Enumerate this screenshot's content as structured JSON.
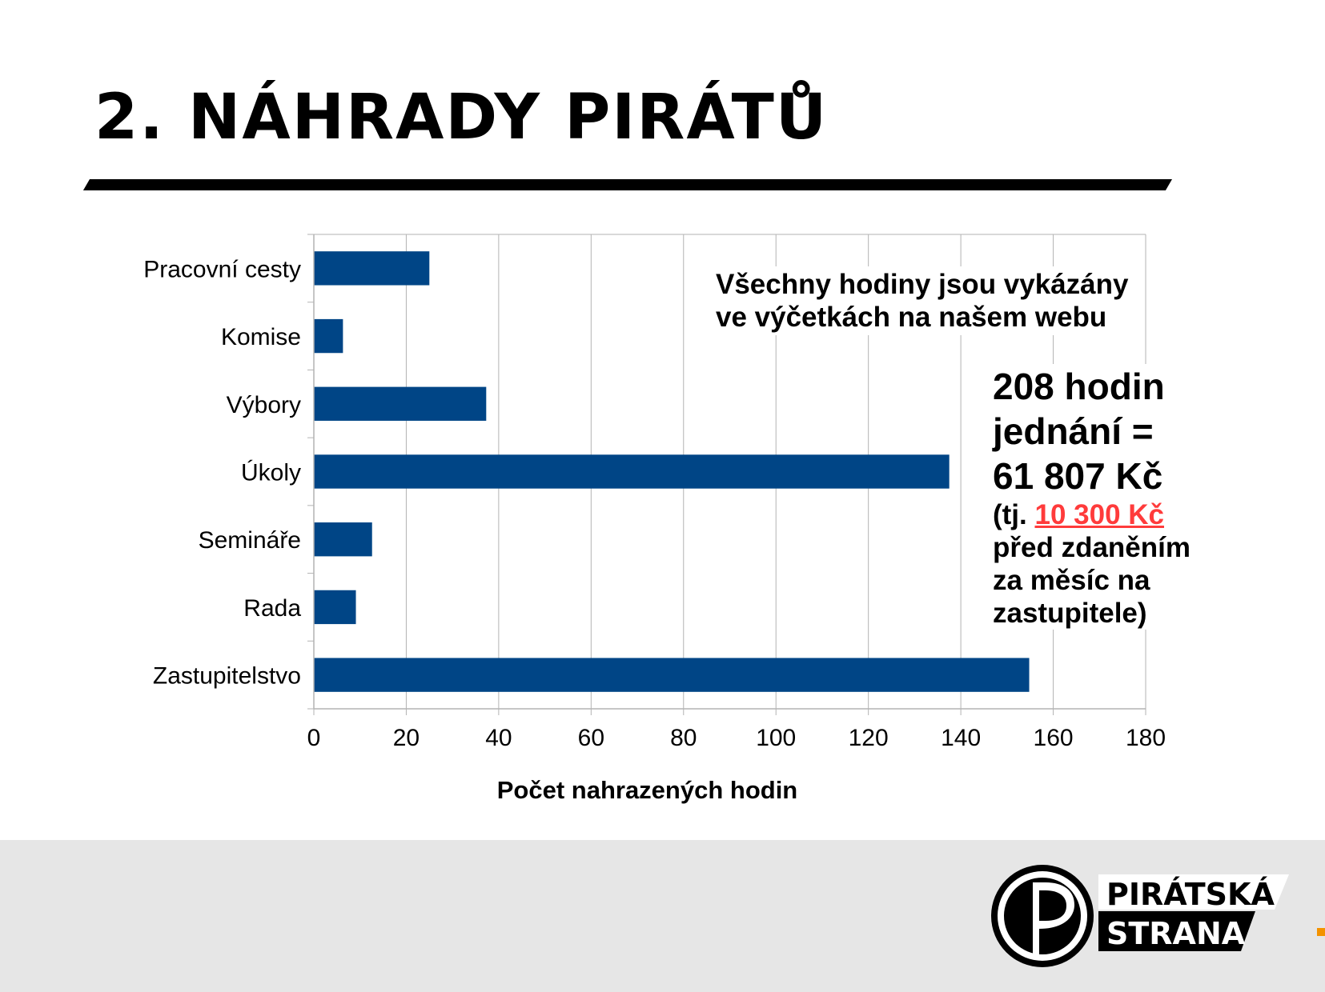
{
  "slide": {
    "title": "2. NÁHRADY PIRÁTŮ"
  },
  "note": {
    "line1": "Všechny hodiny jsou vykázány",
    "line2": "ve výčetkách na našem webu"
  },
  "summary": {
    "line1": "208 hodin",
    "line2": "jednání =",
    "line3": "61 807 Kč",
    "line4_prefix": "(tj. ",
    "line4_highlight": "10 300 Kč",
    "line5": "před zdaněním",
    "line6": "za měsíc na",
    "line7": "zastupitele)",
    "highlight_color": "#ff3b3b"
  },
  "logo": {
    "line1": "PIRÁTSKÁ",
    "line2": "STRANA"
  },
  "chart_data": {
    "type": "bar",
    "orientation": "horizontal",
    "categories": [
      "Pracovní cesty",
      "Komise",
      "Výbory",
      "Úkoly",
      "Semináře",
      "Rada",
      "Zastupitelstvo"
    ],
    "values": [
      25,
      6.3,
      37.3,
      137.5,
      12.6,
      9.1,
      154.8
    ],
    "xlabel": "Počet nahrazených hodin",
    "ylabel": "",
    "xlim": [
      0,
      180
    ],
    "xticks": [
      0,
      20,
      40,
      60,
      80,
      100,
      120,
      140,
      160,
      180
    ],
    "grid": true,
    "bar_color": "#004586"
  }
}
